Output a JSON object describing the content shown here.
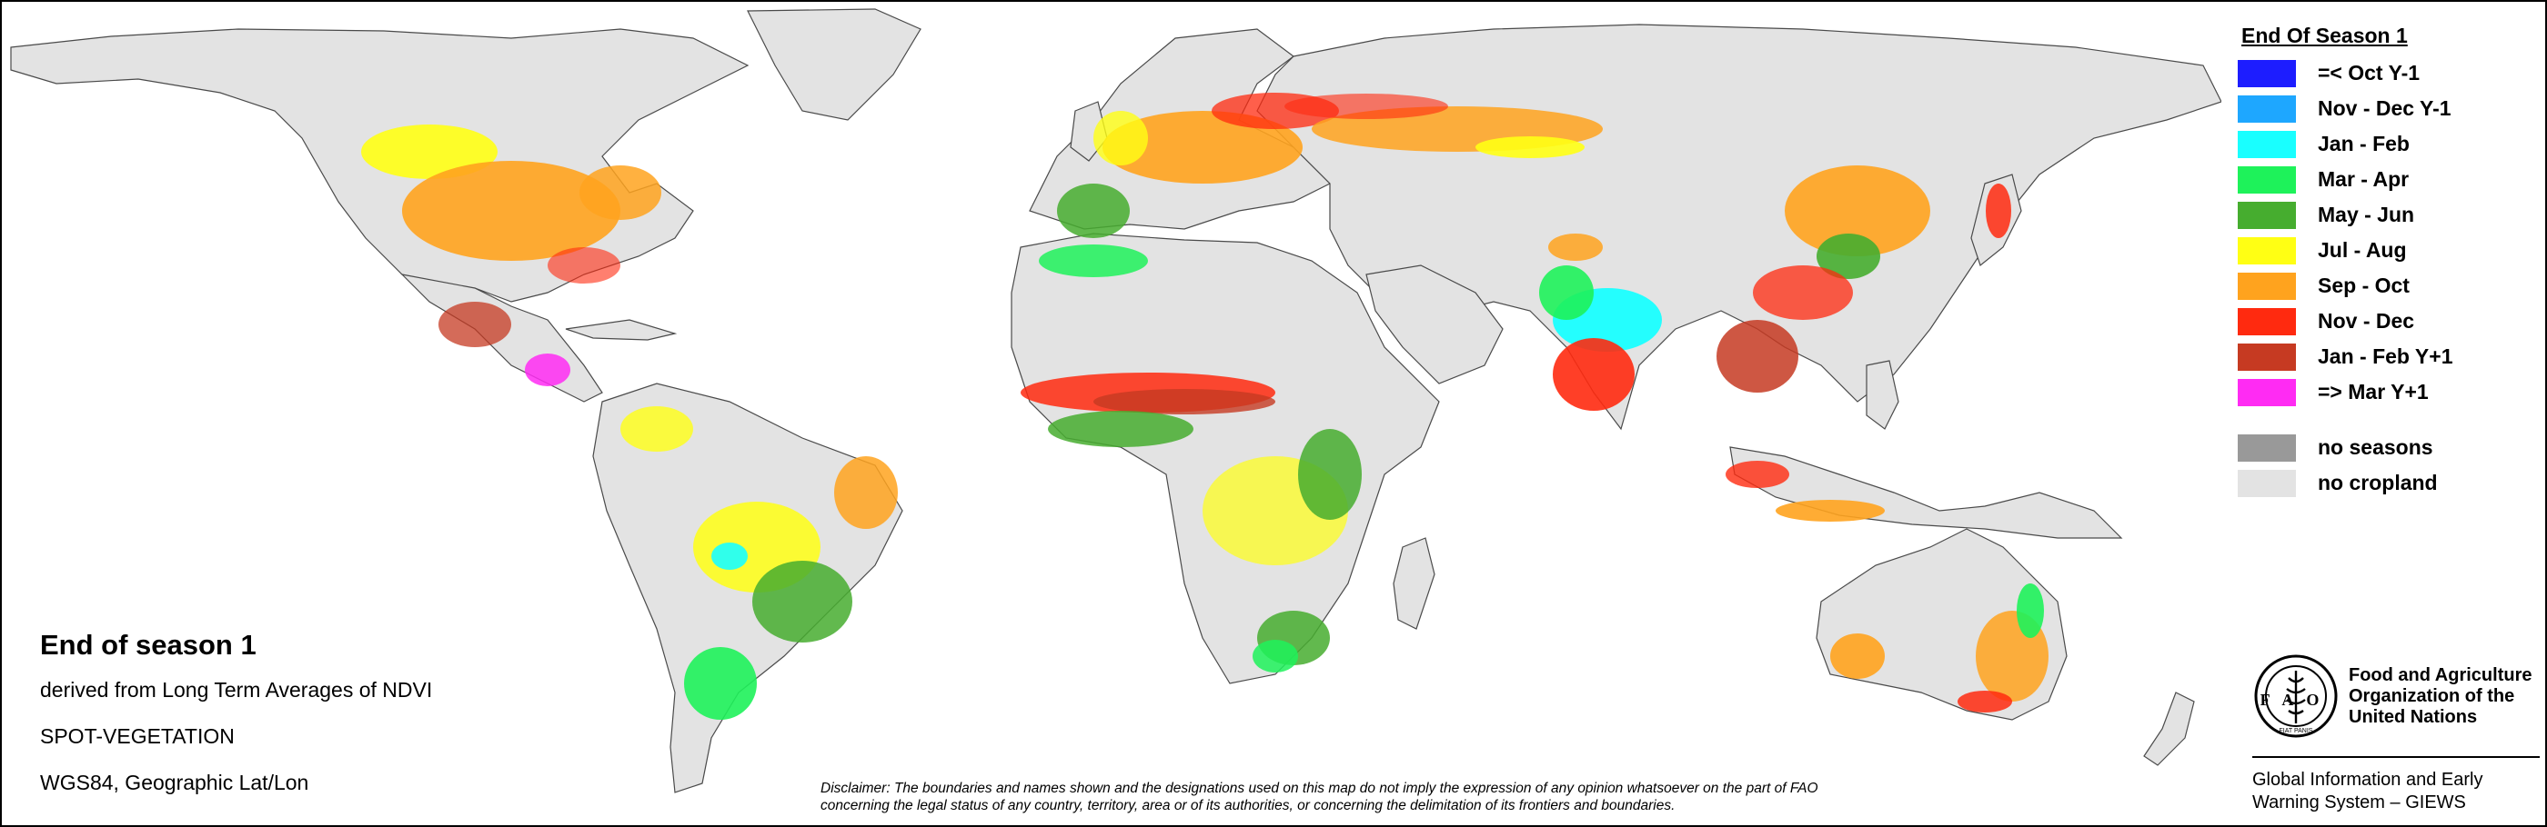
{
  "legend": {
    "title": "End Of Season 1",
    "classes": [
      {
        "label": "=< Oct Y-1",
        "color": "#1d1dff"
      },
      {
        "label": "Nov - Dec Y-1",
        "color": "#1ea7ff"
      },
      {
        "label": "Jan - Feb",
        "color": "#19ffff"
      },
      {
        "label": "Mar - Apr",
        "color": "#1ef25a"
      },
      {
        "label": "May - Jun",
        "color": "#46ad2f"
      },
      {
        "label": "Jul - Aug",
        "color": "#ffff14"
      },
      {
        "label": "Sep - Oct",
        "color": "#ffa31e"
      },
      {
        "label": "Nov - Dec",
        "color": "#ff2a0f"
      },
      {
        "label": "Jan - Feb Y+1",
        "color": "#c63a22"
      },
      {
        "label": "=> Mar Y+1",
        "color": "#ff2bf3"
      }
    ],
    "extra": [
      {
        "label": "no seasons",
        "color": "#999999"
      },
      {
        "label": "no cropland",
        "color": "#e3e3e3"
      }
    ]
  },
  "info": {
    "title": "End of season 1",
    "lines": [
      "derived from Long Term Averages of NDVI",
      "SPOT-VEGETATION",
      "WGS84, Geographic Lat/Lon"
    ]
  },
  "disclaimer": {
    "line1": "Disclaimer: The boundaries and names shown and the designations used on this map do not imply the expression of any opinion whatsoever on the part of FAO",
    "line2": "concerning the legal status of any country, territory, area or of its authorities, or concerning the delimitation of its frontiers and boundaries."
  },
  "fao": {
    "name_lines": [
      "Food and Agriculture",
      "Organization of the",
      "United Nations"
    ],
    "logo_text": "FAO",
    "logo_motto": "FIAT PANIS",
    "giews_lines": [
      "Global Information and Early",
      "Warning System – GIEWS"
    ]
  },
  "colors": {
    "land": "#e3e3e3",
    "border": "#555555",
    "water": "#ffffff"
  }
}
